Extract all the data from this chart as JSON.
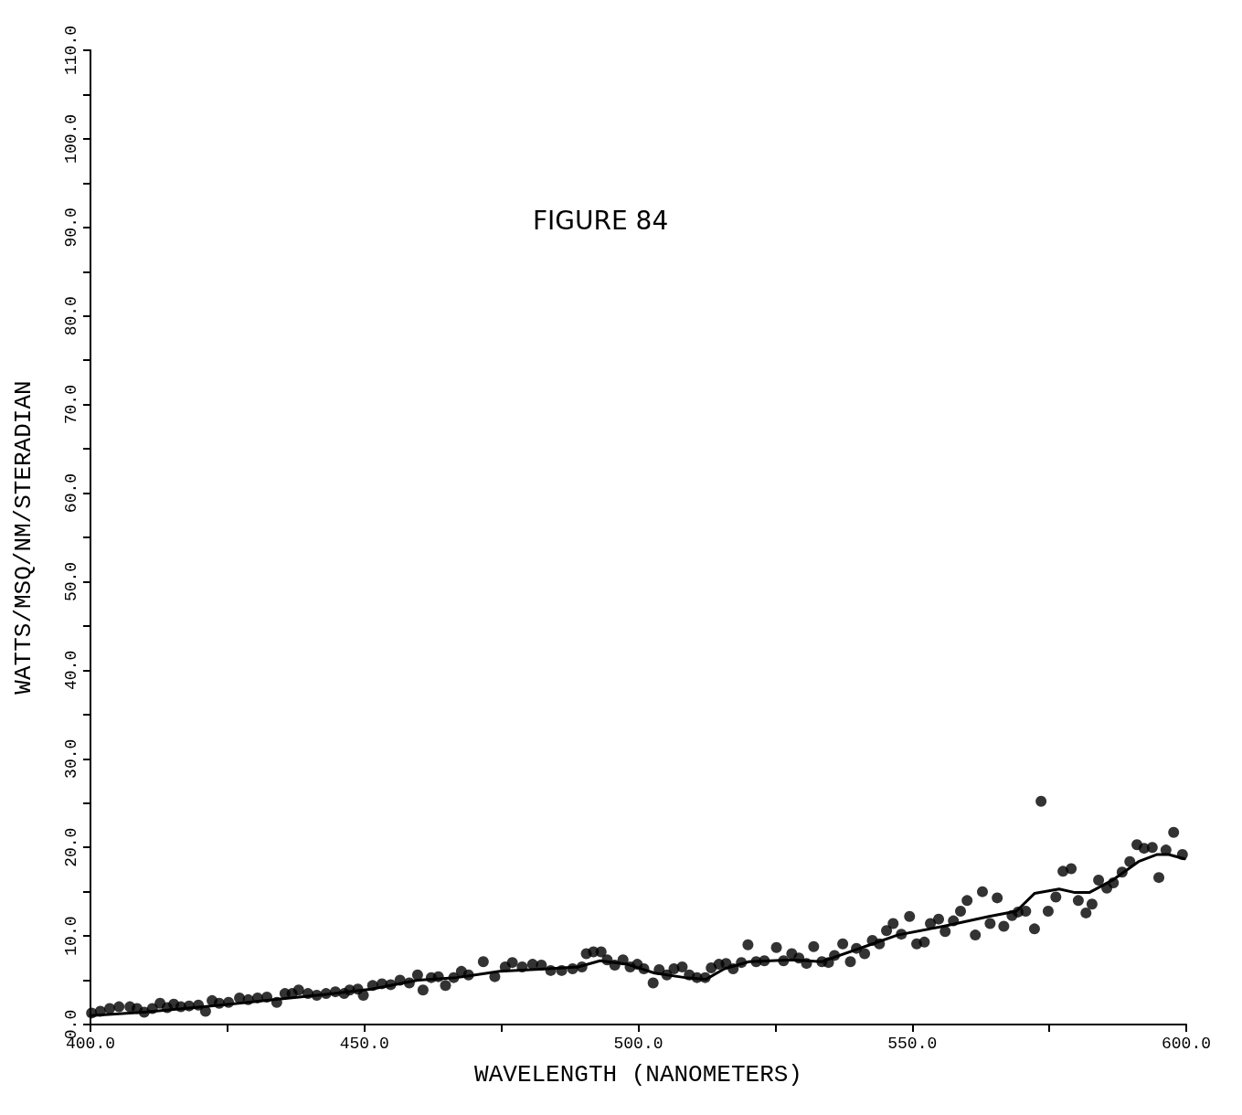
{
  "chart_data": {
    "type": "scatter",
    "title": "FIGURE 84",
    "xlabel": "WAVELENGTH (NANOMETERS)",
    "ylabel": "WATTS/MSQ/NM/STERADIAN",
    "xlim": [
      400,
      600
    ],
    "ylim": [
      0,
      110
    ],
    "xticks": [
      {
        "value": 400,
        "label": "400.0"
      },
      {
        "value": 425,
        "label": null
      },
      {
        "value": 450,
        "label": "450.0"
      },
      {
        "value": 475,
        "label": null
      },
      {
        "value": 500,
        "label": "500.0"
      },
      {
        "value": 525,
        "label": null
      },
      {
        "value": 550,
        "label": "550.0"
      },
      {
        "value": 575,
        "label": null
      },
      {
        "value": 600,
        "label": "600.0"
      }
    ],
    "yticks": [
      {
        "value": 0,
        "label": "0.0"
      },
      {
        "value": 5,
        "label": null
      },
      {
        "value": 10,
        "label": "10.0"
      },
      {
        "value": 15,
        "label": null
      },
      {
        "value": 20,
        "label": "20.0"
      },
      {
        "value": 25,
        "label": null
      },
      {
        "value": 30,
        "label": "30.0"
      },
      {
        "value": 35,
        "label": null
      },
      {
        "value": 40,
        "label": "40.0"
      },
      {
        "value": 45,
        "label": null
      },
      {
        "value": 50,
        "label": "50.0"
      },
      {
        "value": 55,
        "label": null
      },
      {
        "value": 60,
        "label": "60.0"
      },
      {
        "value": 65,
        "label": null
      },
      {
        "value": 70,
        "label": "70.0"
      },
      {
        "value": 75,
        "label": null
      },
      {
        "value": 80,
        "label": "80.0"
      },
      {
        "value": 85,
        "label": null
      },
      {
        "value": 90,
        "label": "90.0"
      },
      {
        "value": 95,
        "label": null
      },
      {
        "value": 100,
        "label": "100.0"
      },
      {
        "value": 105,
        "label": null
      },
      {
        "value": 110,
        "label": "110.0"
      }
    ],
    "grid": false,
    "series": [
      {
        "color": "#000000",
        "marker": "circle",
        "x": [
          400.2,
          401.8,
          403.5,
          405.2,
          407.2,
          408.5,
          409.8,
          411.3,
          412.7,
          414,
          415.2,
          416.5,
          418,
          419.7,
          421,
          422.2,
          423.5,
          425.2,
          427.2,
          428.8,
          430.5,
          432.2,
          434,
          435.5,
          436.8,
          438,
          439.7,
          441.3,
          443,
          444.7,
          446.3,
          447.3,
          448.8,
          449.8,
          451.5,
          453.2,
          454.8,
          456.5,
          458.2,
          459.7,
          460.7,
          462.2,
          463.5,
          464.8,
          466.3,
          467.7,
          469,
          471.7,
          473.8,
          475.7,
          477,
          478.8,
          480.7,
          482.3,
          484,
          486,
          488,
          489.7,
          490.5,
          491.8,
          493.2,
          494.3,
          495.7,
          497.2,
          498.5,
          499.8,
          501,
          502.7,
          503.8,
          505.2,
          506.5,
          508,
          509.3,
          510.7,
          512.2,
          513.3,
          514.7,
          516,
          517.3,
          518.8,
          520,
          521.5,
          523,
          525.2,
          526.5,
          528,
          529.3,
          530.7,
          532,
          533.5,
          534.7,
          535.8,
          537.3,
          538.7,
          539.8,
          541.3,
          542.7,
          544,
          545.3,
          546.5,
          548,
          549.5,
          550.8,
          552.2,
          553.3,
          554.8,
          556,
          557.5,
          558.8,
          560,
          561.5,
          562.8,
          564.2,
          565.5,
          566.7,
          568.2,
          569.3,
          570.7,
          572.3,
          573.5,
          574.8,
          576.2,
          577.5,
          579,
          580.3,
          581.7,
          582.8,
          584,
          585.5,
          586.7,
          588.3,
          589.7,
          591,
          592.3,
          593.8,
          595,
          596.3,
          597.7,
          599.3
        ],
        "values": [
          1.3,
          1.5,
          1.8,
          2.0,
          2.0,
          1.8,
          1.4,
          1.8,
          2.4,
          1.9,
          2.3,
          2.0,
          2.1,
          2.2,
          1.5,
          2.7,
          2.4,
          2.5,
          3.0,
          2.8,
          3.0,
          3.1,
          2.5,
          3.5,
          3.5,
          3.9,
          3.5,
          3.3,
          3.5,
          3.7,
          3.5,
          3.9,
          4.0,
          3.3,
          4.4,
          4.6,
          4.5,
          5.0,
          4.7,
          5.6,
          3.9,
          5.3,
          5.4,
          4.4,
          5.3,
          6.0,
          5.6,
          7.1,
          5.4,
          6.5,
          7.0,
          6.5,
          6.8,
          6.7,
          6.1,
          6.1,
          6.3,
          6.5,
          8.0,
          8.2,
          8.2,
          7.3,
          6.7,
          7.3,
          6.5,
          6.8,
          6.3,
          4.7,
          6.2,
          5.6,
          6.3,
          6.5,
          5.6,
          5.3,
          5.3,
          6.4,
          6.8,
          6.9,
          6.3,
          7.0,
          9.0,
          7.1,
          7.2,
          8.7,
          7.2,
          8.0,
          7.5,
          6.9,
          8.8,
          7.1,
          7.0,
          7.8,
          9.1,
          7.1,
          8.6,
          8.0,
          9.5,
          9.1,
          10.6,
          11.4,
          10.2,
          12.2,
          9.1,
          9.3,
          11.4,
          11.9,
          10.5,
          11.7,
          12.8,
          14.0,
          10.1,
          15.0,
          11.4,
          14.3,
          11.1,
          12.3,
          12.7,
          12.8,
          10.8,
          25.2,
          12.8,
          14.4,
          17.3,
          17.6,
          14.0,
          12.6,
          13.6,
          16.3,
          15.4,
          16.0,
          17.2,
          18.4,
          20.3,
          19.9,
          20.0,
          16.6,
          19.7,
          21.7,
          19.2
        ]
      },
      {
        "type": "line",
        "color": "#000000",
        "marker": "none",
        "line_style": "solid",
        "x": [
          400,
          409.7,
          420.7,
          431.8,
          443,
          451.3,
          459.7,
          466.8,
          474.7,
          483.5,
          489,
          493,
          498,
          503,
          508.5,
          512.3,
          515.7,
          520.2,
          528,
          533.5,
          541.8,
          547.3,
          555.7,
          564,
          569,
          572.3,
          576.8,
          579.7,
          582.3,
          586.8,
          591.3,
          594.7,
          596.8,
          599.7
        ],
        "values": [
          1.0,
          1.4,
          2.0,
          2.7,
          3.4,
          4.0,
          5.0,
          5.3,
          6.0,
          6.3,
          6.5,
          7.2,
          6.8,
          5.8,
          5.3,
          5.1,
          6.3,
          7.1,
          7.3,
          7.1,
          8.9,
          10.1,
          11.1,
          12.2,
          12.8,
          14.8,
          15.3,
          14.9,
          14.9,
          16.4,
          18.4,
          19.2,
          19.2,
          18.7
        ]
      }
    ]
  }
}
